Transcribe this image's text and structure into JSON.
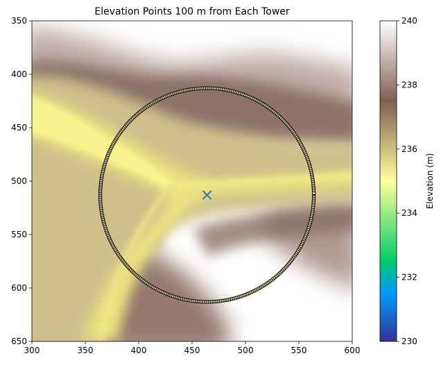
{
  "chart_data": {
    "type": "heatmap",
    "title": "Elevation Points 100 m from Each Tower",
    "xlim": [
      300,
      600
    ],
    "ylim": [
      650,
      350
    ],
    "y_inverted": true,
    "x_ticks": [
      "300",
      "350",
      "400",
      "450",
      "500",
      "550",
      "600"
    ],
    "y_ticks": [
      "350",
      "400",
      "450",
      "500",
      "550",
      "600",
      "650"
    ],
    "grid": false,
    "colorbar": {
      "label": "Elevation (m)",
      "range": [
        230,
        240
      ],
      "ticks": [
        "230",
        "232",
        "234",
        "236",
        "238",
        "240"
      ],
      "colormap": "terrain"
    },
    "tower": {
      "x": 464,
      "y": 513,
      "marker": "x",
      "color": "#1f77b4"
    },
    "circle_points": {
      "center_x": 464,
      "center_y": 513,
      "radius": 100,
      "count": 360,
      "marker": "o",
      "edge_color": "#000000",
      "fill_color": "#e6dca0"
    },
    "colors": {
      "valley": "#f7f28e",
      "mid": "#d2c48a",
      "ridge": "#85675c",
      "high": "#ffffff"
    }
  }
}
